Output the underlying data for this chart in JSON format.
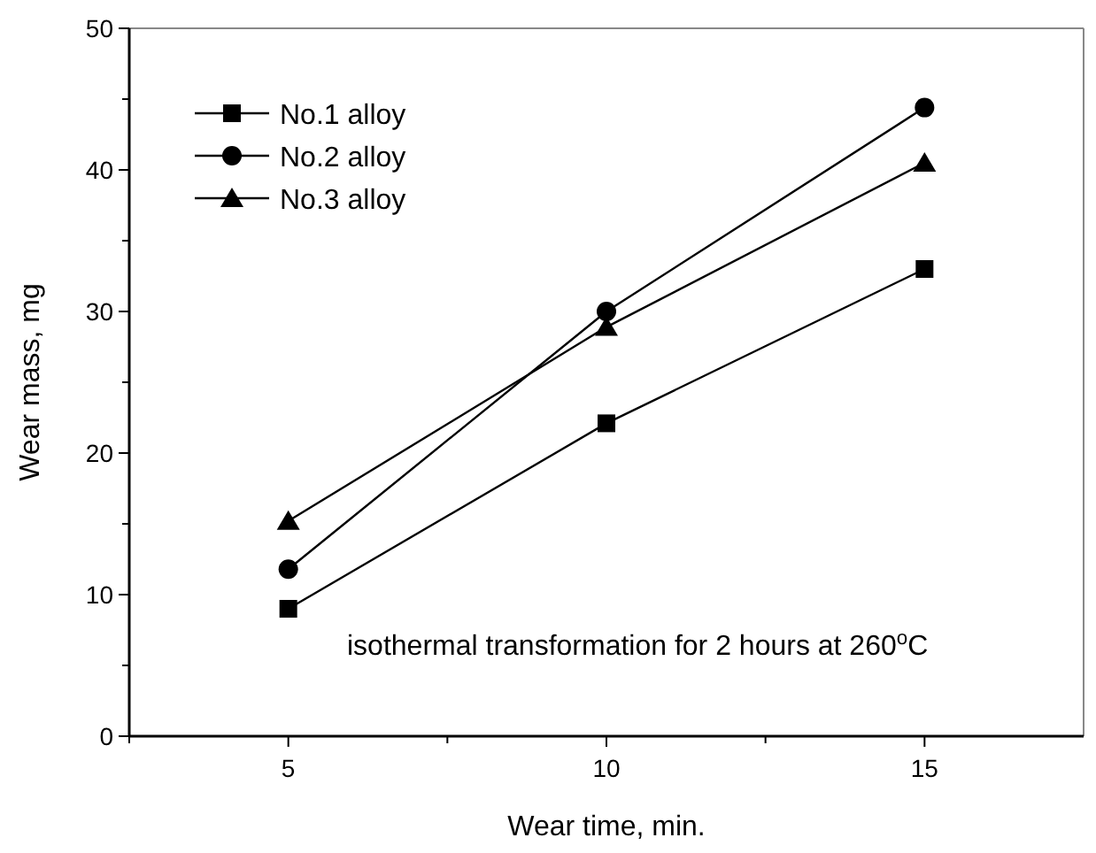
{
  "chart_data": {
    "type": "line",
    "xlabel": "Wear time, min.",
    "ylabel": "Wear mass, mg",
    "x": [
      5,
      10,
      15
    ],
    "series": [
      {
        "name": "No.1 alloy",
        "color": "#000000",
        "marker": "square",
        "values": [
          9.0,
          22.1,
          33.0
        ]
      },
      {
        "name": "No.2 alloy",
        "color": "#000000",
        "marker": "circle",
        "values": [
          11.8,
          30.0,
          44.4
        ]
      },
      {
        "name": "No.3 alloy",
        "color": "#000000",
        "marker": "triangle",
        "values": [
          15.2,
          28.9,
          40.5
        ]
      }
    ],
    "xlim": [
      2.5,
      17.5
    ],
    "xticks": [
      {
        "value": 2.5,
        "label": null
      },
      5,
      {
        "value": 7.5,
        "label": null
      },
      10,
      {
        "value": 12.5,
        "label": null
      },
      15
    ],
    "ylim": [
      0,
      50
    ],
    "yticks": [
      0,
      {
        "value": 5,
        "label": null
      },
      10,
      {
        "value": 15,
        "label": null
      },
      20,
      {
        "value": 25,
        "label": null
      },
      30,
      {
        "value": 35,
        "label": null
      },
      40,
      {
        "value": 45,
        "label": null
      },
      50
    ],
    "annotations": [
      "isothermal transformation for 2 hours at 260$^{o}$C"
    ],
    "legend": "top left",
    "grid": false,
    "line_style": "solid"
  }
}
